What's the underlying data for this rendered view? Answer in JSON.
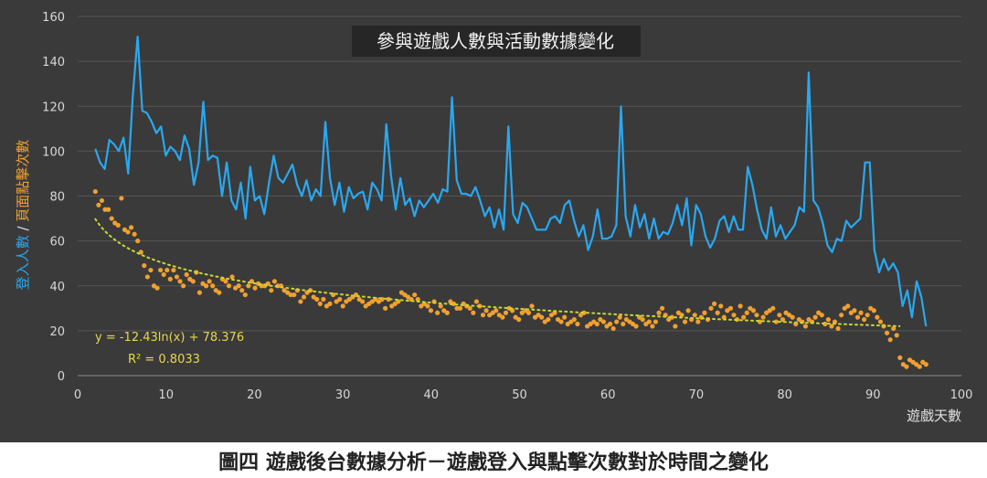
{
  "caption": "圖四 遊戲後台數據分析－遊戲登入與點擊次數對於時間之變化",
  "chart_data": {
    "type": "line",
    "title": "參與遊戲人數與活動數據變化",
    "xlabel": "遊戲天數",
    "ylabel_parts": [
      "登入人數",
      " / ",
      "頁面點擊次數"
    ],
    "xlim": [
      0,
      100
    ],
    "ylim": [
      0,
      160
    ],
    "x_ticks": [
      0,
      10,
      20,
      30,
      40,
      50,
      60,
      70,
      80,
      90,
      100
    ],
    "y_ticks": [
      0,
      20,
      40,
      60,
      80,
      100,
      120,
      140,
      160
    ],
    "grid": true,
    "trendline_label": "y = -12.43ln(x) + 78.376",
    "r2_label": "R² = 0.8033",
    "trendline": {
      "a": -12.43,
      "b": 78.376,
      "x_from": 2,
      "x_to": 93
    },
    "colors": {
      "login": "#29a8f0",
      "clicks": "#f0a030",
      "trend": "#c8d832",
      "axis_text": "#d8d8d8",
      "annotation": "#e6d84a"
    },
    "series": [
      {
        "kind": "line",
        "x_start": 2,
        "values": [
          101,
          95,
          92,
          105,
          103,
          100,
          106,
          90,
          125,
          151,
          118,
          117,
          113,
          108,
          111,
          98,
          102,
          100,
          96,
          107,
          101,
          85,
          95,
          122,
          96,
          98,
          97,
          80,
          95,
          78,
          74,
          86,
          70,
          93,
          78,
          80,
          72,
          86,
          98,
          88,
          86,
          90,
          94,
          85,
          80,
          87,
          78,
          83,
          80,
          113,
          88,
          76,
          86,
          73,
          84,
          79,
          81,
          82,
          74,
          86,
          83,
          78,
          112,
          89,
          74,
          88,
          76,
          79,
          71,
          78,
          75,
          78,
          81,
          77,
          83,
          82,
          124,
          87,
          81,
          81,
          80,
          84,
          78,
          71,
          75,
          66,
          74,
          65,
          111,
          72,
          68,
          77,
          75,
          70,
          65,
          65,
          65,
          70,
          71,
          68,
          76,
          78,
          69,
          62,
          67,
          56,
          62,
          74,
          61,
          61,
          62,
          67,
          120,
          71,
          62,
          76,
          66,
          72,
          61,
          70,
          61,
          64,
          63,
          68,
          76,
          67,
          79,
          58,
          76,
          72,
          62,
          57,
          61,
          69,
          71,
          64,
          71,
          65,
          65,
          93,
          85,
          74,
          65,
          61,
          75,
          62,
          67,
          61,
          64,
          67,
          75,
          73,
          135,
          78,
          75,
          68,
          58,
          55,
          61,
          60,
          69,
          66,
          68,
          70,
          95,
          95,
          56,
          46,
          52,
          47,
          50,
          46,
          31,
          38,
          26,
          42,
          35,
          22
        ]
      },
      {
        "kind": "scatter",
        "x_start": 2,
        "values": [
          82,
          76,
          78,
          74,
          74,
          70,
          68,
          67,
          79,
          65,
          64,
          66,
          63,
          60,
          55,
          49,
          44,
          47,
          40,
          39,
          47,
          45,
          47,
          43,
          47,
          44,
          42,
          40,
          45,
          43,
          42,
          46,
          37,
          41,
          40,
          42,
          40,
          38,
          37,
          43,
          42,
          40,
          44,
          39,
          40,
          38,
          36,
          40,
          42,
          39,
          41,
          40,
          40,
          41,
          38,
          42,
          40,
          40,
          38,
          37,
          36,
          36,
          38,
          33,
          35,
          37,
          38,
          35,
          34,
          32,
          34,
          31,
          32,
          36,
          33,
          34,
          31,
          33,
          34,
          35,
          36,
          34,
          33,
          31,
          32,
          33,
          34,
          33,
          34,
          30,
          34,
          31,
          32,
          33,
          37,
          36,
          35,
          34,
          36,
          34,
          31,
          32,
          31,
          29,
          33,
          28,
          31,
          29,
          28,
          33,
          32,
          30,
          30,
          32,
          31,
          30,
          28,
          33,
          31,
          27,
          29,
          27,
          28,
          29,
          27,
          26,
          28,
          30,
          29,
          26,
          25,
          28,
          29,
          28,
          31,
          26,
          27,
          26,
          24,
          25,
          27,
          28,
          25,
          24,
          26,
          23,
          24,
          25,
          23,
          27,
          28,
          22,
          23,
          24,
          23,
          25,
          24,
          22,
          23,
          21,
          24,
          26,
          23,
          25,
          24,
          23,
          22,
          26,
          25,
          23,
          24,
          22,
          24,
          28,
          30,
          27,
          25,
          26,
          22,
          28,
          27,
          24,
          29,
          25,
          27,
          24,
          26,
          28,
          25,
          30,
          32,
          28,
          31,
          26,
          29,
          30,
          27,
          25,
          31,
          26,
          28,
          30,
          29,
          27,
          24,
          26,
          28,
          29,
          30,
          24,
          27,
          25,
          28,
          27,
          26,
          23,
          25,
          24,
          22,
          25,
          24,
          26,
          28,
          27,
          23,
          25,
          22,
          24,
          21,
          27,
          30,
          31,
          28,
          29,
          26,
          28,
          25,
          27,
          30,
          29,
          26,
          24,
          22,
          19,
          16,
          21,
          18,
          8,
          5,
          4,
          7,
          6,
          5,
          4,
          6,
          5
        ]
      }
    ]
  }
}
